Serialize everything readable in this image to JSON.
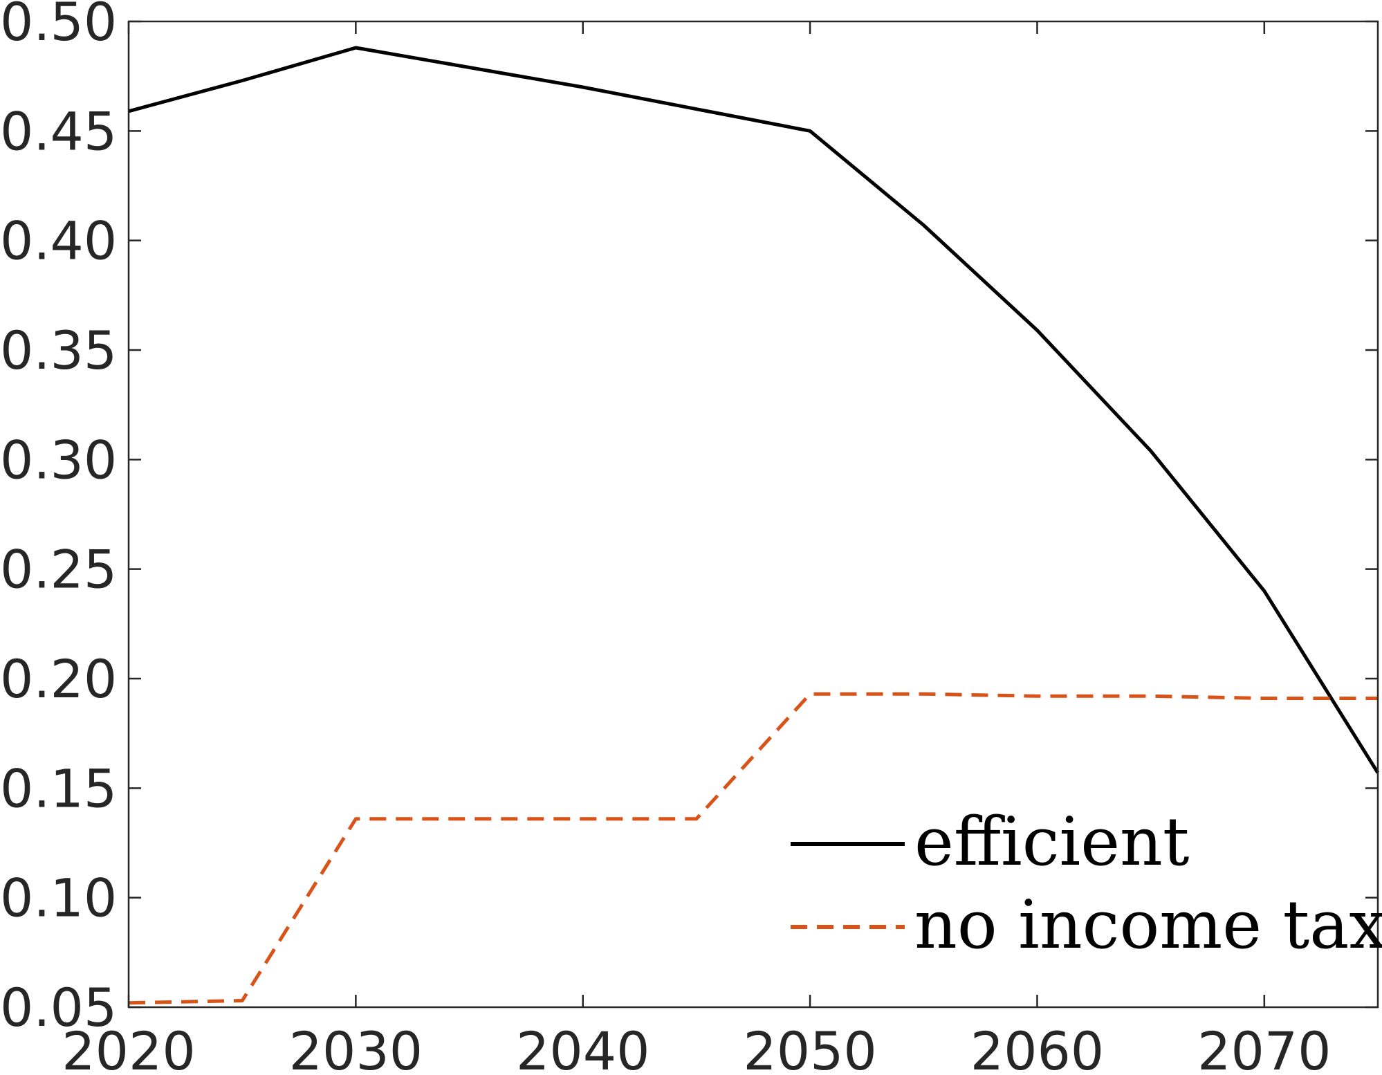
{
  "chart_data": {
    "type": "line",
    "title": "",
    "xlabel": "",
    "ylabel": "",
    "xlim": [
      2020,
      2075
    ],
    "ylim": [
      0.05,
      0.5
    ],
    "xticks": [
      2020,
      2030,
      2040,
      2050,
      2060,
      2070
    ],
    "xtick_labels": [
      "2020",
      "2030",
      "2040",
      "2050",
      "2060",
      "2070"
    ],
    "yticks": [
      0.05,
      0.1,
      0.15,
      0.2,
      0.25,
      0.3,
      0.35,
      0.4,
      0.45,
      0.5
    ],
    "ytick_labels": [
      "0.05",
      "0.10",
      "0.15",
      "0.20",
      "0.25",
      "0.30",
      "0.35",
      "0.40",
      "0.45",
      "0.50"
    ],
    "grid": false,
    "legend_position": "bottom-right",
    "series": [
      {
        "name": "efficient",
        "color": "#000000",
        "style": "solid",
        "x": [
          2020,
          2025,
          2030,
          2035,
          2040,
          2045,
          2050,
          2055,
          2060,
          2065,
          2070,
          2075
        ],
        "y": [
          0.459,
          0.473,
          0.488,
          0.479,
          0.47,
          0.46,
          0.45,
          0.407,
          0.359,
          0.304,
          0.24,
          0.157
        ]
      },
      {
        "name": "no income tax",
        "color": "#D95319",
        "style": "dashed",
        "x": [
          2020,
          2025,
          2030,
          2035,
          2040,
          2045,
          2050,
          2055,
          2060,
          2065,
          2070,
          2075
        ],
        "y": [
          0.052,
          0.053,
          0.136,
          0.136,
          0.136,
          0.136,
          0.193,
          0.193,
          0.192,
          0.192,
          0.191,
          0.191
        ]
      }
    ]
  }
}
